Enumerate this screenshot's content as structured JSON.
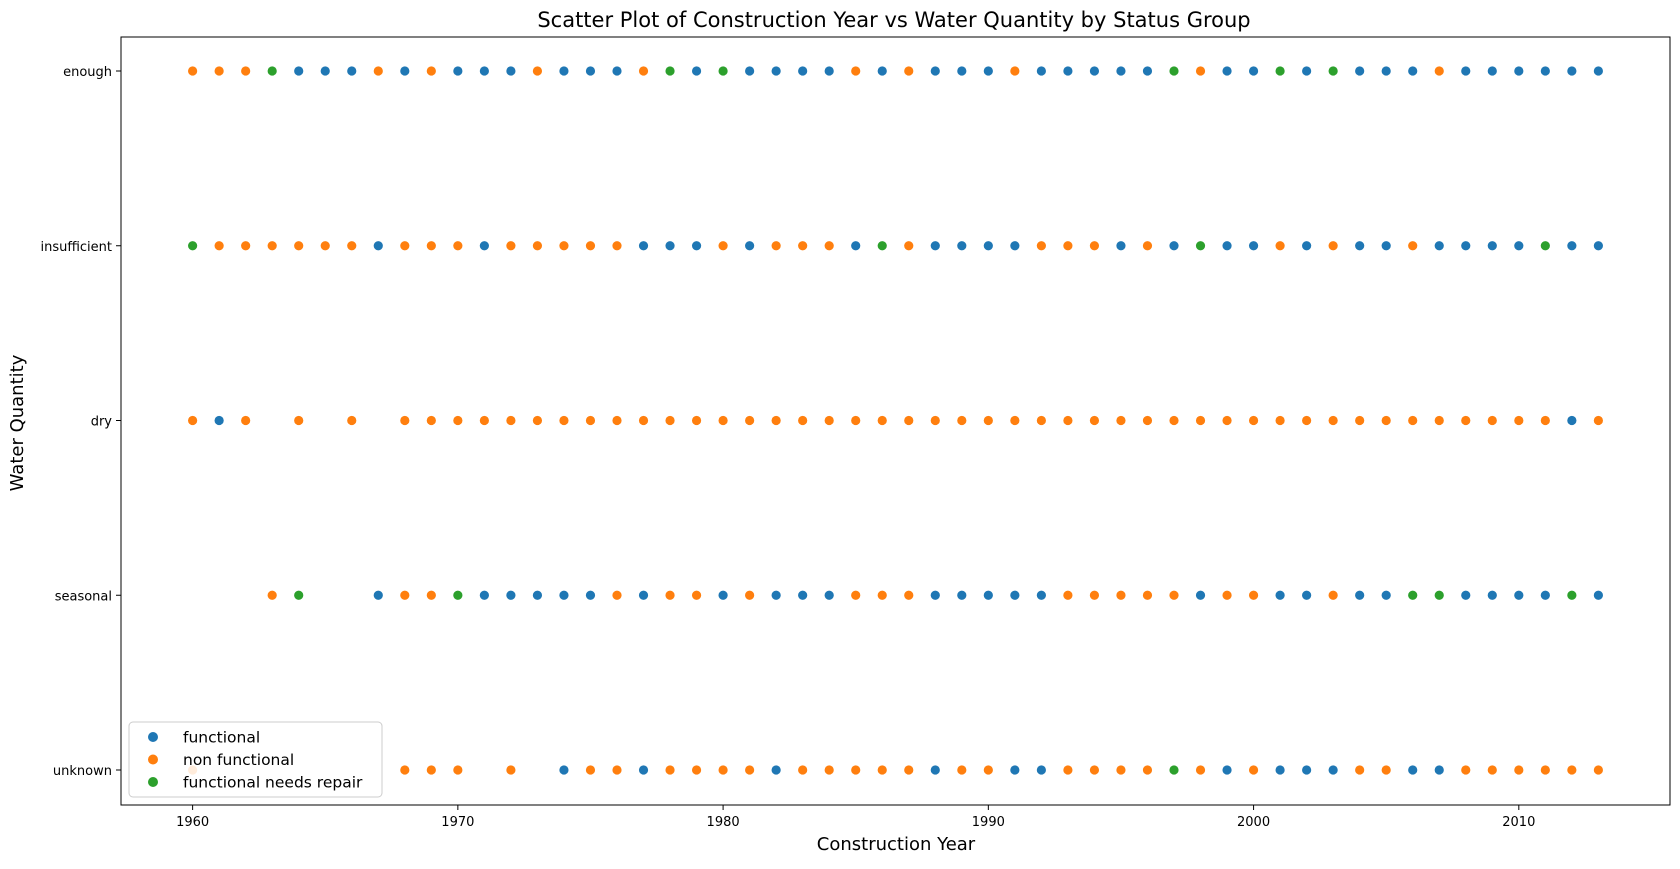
{
  "chart_data": {
    "type": "scatter",
    "title": "Scatter Plot of Construction Year vs Water Quantity by Status Group",
    "xlabel": "Construction Year",
    "ylabel": "Water Quantity",
    "xlim": [
      1957.3,
      2015.7
    ],
    "x_ticks": [
      1960,
      1970,
      1980,
      1990,
      2000,
      2010
    ],
    "categories": [
      "enough",
      "insufficient",
      "dry",
      "seasonal",
      "unknown"
    ],
    "grid": false,
    "legend_position": "lower left",
    "colors": {
      "functional": "#1f77b4",
      "non functional": "#ff7f0e",
      "functional needs repair": "#2ca02c"
    },
    "series": [
      {
        "name": "functional",
        "points": {
          "enough": [
            1964,
            1965,
            1966,
            1968,
            1970,
            1971,
            1972,
            1974,
            1975,
            1976,
            1979,
            1981,
            1982,
            1983,
            1984,
            1986,
            1988,
            1989,
            1990,
            1992,
            1993,
            1994,
            1995,
            1996,
            1999,
            2000,
            2002,
            2004,
            2005,
            2006,
            2008,
            2009,
            2010,
            2011,
            2012,
            2013
          ],
          "insufficient": [
            1967,
            1971,
            1977,
            1978,
            1979,
            1981,
            1985,
            1988,
            1989,
            1990,
            1991,
            1995,
            1997,
            1999,
            2000,
            2002,
            2004,
            2005,
            2007,
            2008,
            2009,
            2010,
            2012,
            2013
          ],
          "dry": [
            1961,
            2012
          ],
          "seasonal": [
            1967,
            1971,
            1972,
            1973,
            1974,
            1975,
            1977,
            1980,
            1982,
            1983,
            1984,
            1988,
            1989,
            1990,
            1991,
            1992,
            1998,
            2001,
            2002,
            2004,
            2005,
            2008,
            2009,
            2010,
            2011,
            2013
          ],
          "unknown": [
            1974,
            1977,
            1982,
            1988,
            1991,
            1992,
            1999,
            2001,
            2002,
            2003,
            2006,
            2007
          ]
        }
      },
      {
        "name": "non functional",
        "points": {
          "enough": [
            1960,
            1961,
            1962,
            1967,
            1969,
            1973,
            1977,
            1985,
            1987,
            1991,
            1998,
            2007
          ],
          "insufficient": [
            1961,
            1962,
            1963,
            1964,
            1965,
            1966,
            1968,
            1969,
            1970,
            1972,
            1973,
            1974,
            1975,
            1976,
            1980,
            1982,
            1983,
            1984,
            1987,
            1992,
            1993,
            1994,
            1996,
            2001,
            2003,
            2006
          ],
          "dry": [
            1960,
            1962,
            1964,
            1966,
            1968,
            1969,
            1970,
            1971,
            1972,
            1973,
            1974,
            1975,
            1976,
            1977,
            1978,
            1979,
            1980,
            1981,
            1982,
            1983,
            1984,
            1985,
            1986,
            1987,
            1988,
            1989,
            1990,
            1991,
            1992,
            1993,
            1994,
            1995,
            1996,
            1997,
            1998,
            1999,
            2000,
            2001,
            2002,
            2003,
            2004,
            2005,
            2006,
            2007,
            2008,
            2009,
            2010,
            2011,
            2013
          ],
          "seasonal": [
            1963,
            1968,
            1969,
            1976,
            1978,
            1979,
            1981,
            1985,
            1986,
            1987,
            1993,
            1994,
            1995,
            1996,
            1997,
            1999,
            2000,
            2003
          ],
          "unknown": [
            1960,
            1968,
            1969,
            1970,
            1972,
            1975,
            1976,
            1978,
            1979,
            1980,
            1981,
            1983,
            1984,
            1985,
            1986,
            1987,
            1989,
            1990,
            1993,
            1994,
            1995,
            1996,
            1998,
            2000,
            2004,
            2005,
            2008,
            2009,
            2010,
            2011,
            2012,
            2013
          ]
        }
      },
      {
        "name": "functional needs repair",
        "points": {
          "enough": [
            1963,
            1978,
            1980,
            1997,
            2001,
            2003
          ],
          "insufficient": [
            1960,
            1986,
            1998,
            2011
          ],
          "dry": [],
          "seasonal": [
            1964,
            1970,
            2006,
            2007,
            2012
          ],
          "unknown": [
            1997
          ]
        }
      }
    ]
  }
}
